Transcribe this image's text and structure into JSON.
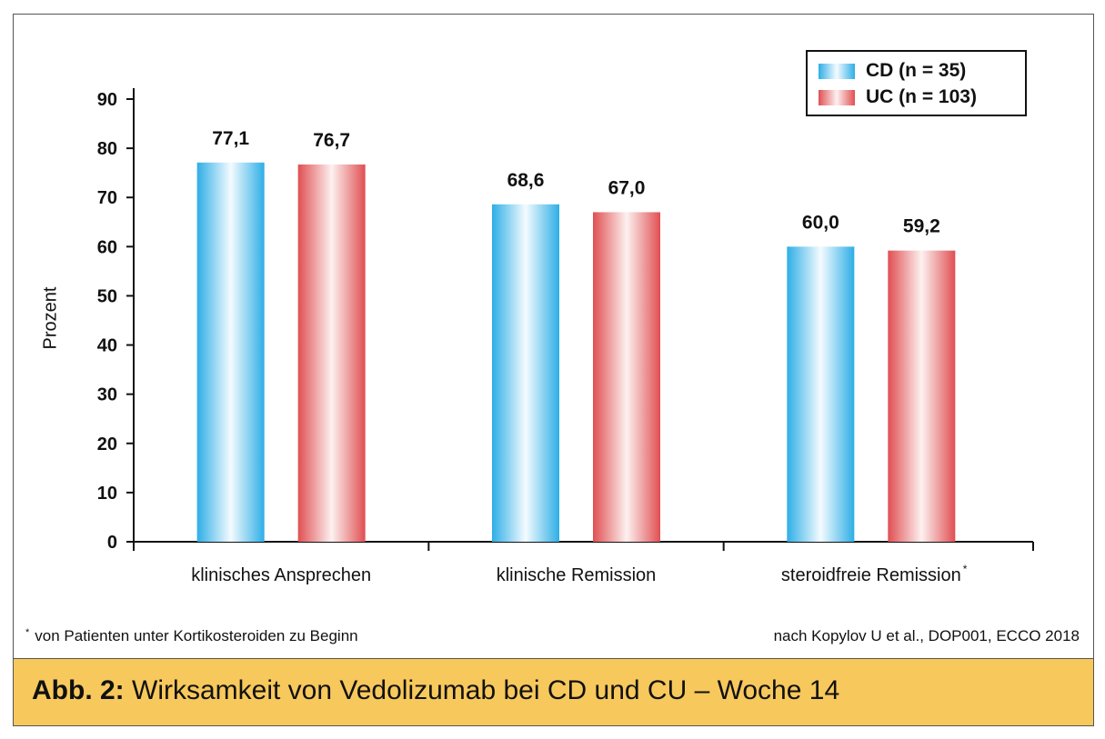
{
  "chart_data": {
    "type": "bar",
    "ylabel": "Prozent",
    "xlabel": "",
    "ylim": [
      0,
      90
    ],
    "yticks": [
      0,
      10,
      20,
      30,
      40,
      50,
      60,
      70,
      80,
      90
    ],
    "categories": [
      "klinisches Ansprechen",
      "klinische Remission",
      "steroidfreie Remission"
    ],
    "category_superscripts": [
      "",
      "",
      "*"
    ],
    "series": [
      {
        "name": "CD (n = 35)",
        "values": [
          77.1,
          68.6,
          60.0
        ],
        "labels": [
          "77,1",
          "68,6",
          "60,0"
        ],
        "color": "#3cb6e8"
      },
      {
        "name": "UC (n = 103)",
        "values": [
          76.7,
          67.0,
          59.2
        ],
        "labels": [
          "76,7",
          "67,0",
          "59,2"
        ],
        "color": "#e2575a"
      }
    ],
    "legend_position": "top-right",
    "grid": false
  },
  "footnote": {
    "marker": "*",
    "text": "von Patienten unter Kortikosteroiden zu Beginn"
  },
  "source": "nach Kopylov U et al., DOP001, ECCO 2018",
  "caption": {
    "label": "Abb. 2:",
    "text": " Wirksamkeit von Vedolizumab bei CD und CU – Woche 14"
  },
  "colors": {
    "caption_background": "#f7c85c",
    "cd_bar": "#3cb6e8",
    "uc_bar": "#e2575a"
  }
}
